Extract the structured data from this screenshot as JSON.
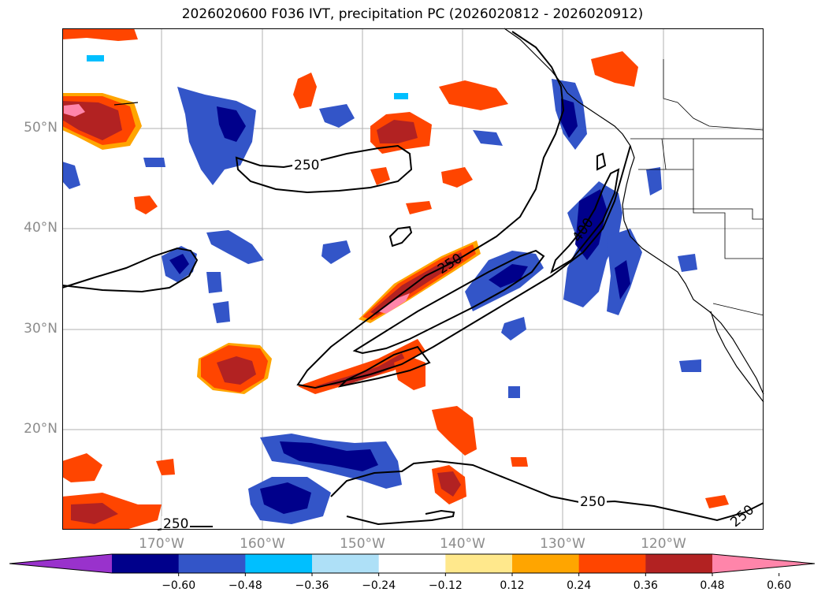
{
  "title": "2026020600 F036 IVT, precipitation PC (2026020812 - 2026020912)",
  "lat_labels": [
    "50°N",
    "40°N",
    "30°N",
    "20°N"
  ],
  "lon_labels": [
    "170°W",
    "160°W",
    "150°W",
    "140°W",
    "130°W",
    "120°W"
  ],
  "contour_labels": [
    "250",
    "250",
    "250",
    "400",
    "250",
    "250"
  ],
  "colorbar": {
    "colors": [
      "#9932cc",
      "#00008b",
      "#3355c8",
      "#00bfff",
      "#aee0f7",
      "#ffffff",
      "#ffe88c",
      "#ffa500",
      "#ff4500",
      "#b22222",
      "#ff85aa"
    ],
    "ticks": [
      "−0.60",
      "−0.48",
      "−0.36",
      "−0.24",
      "−0.12",
      "0.12",
      "0.24",
      "0.36",
      "0.48",
      "0.60"
    ]
  }
}
